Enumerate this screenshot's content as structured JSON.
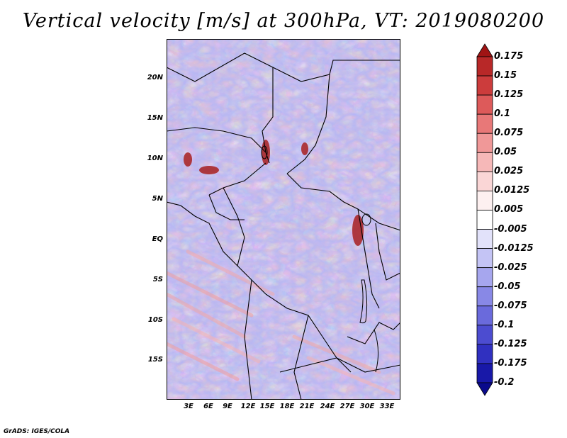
{
  "title": "Vertical velocity [m/s] at 300hPa, VT: 2019080200",
  "map": {
    "variable": "Vertical velocity",
    "level": "300hPa",
    "valid_time": "2019080200",
    "lat_ticks": [
      "20N",
      "15N",
      "10N",
      "5N",
      "EQ",
      "5S",
      "10S",
      "15S"
    ],
    "lon_ticks": [
      "3E",
      "6E",
      "9E",
      "12E",
      "15E",
      "18E",
      "21E",
      "24E",
      "27E",
      "30E",
      "33E"
    ]
  },
  "colorbar": {
    "labels": [
      "0.175",
      "0.15",
      "0.125",
      "0.1",
      "0.075",
      "0.05",
      "0.025",
      "0.0125",
      "0.005",
      "-0.005",
      "-0.0125",
      "-0.025",
      "-0.05",
      "-0.075",
      "-0.1",
      "-0.125",
      "-0.175",
      "-0.2"
    ],
    "colors": [
      "#a01414",
      "#b82828",
      "#cc3c3c",
      "#dd5a5a",
      "#e87878",
      "#f09898",
      "#f6b8b8",
      "#fad6d6",
      "#fdf0f0",
      "#ffffff",
      "#e2e2fa",
      "#c4c4f5",
      "#a6a6ee",
      "#8888e6",
      "#6a6adc",
      "#4c4cd0",
      "#3030c0",
      "#1818a8",
      "#0a0a8c"
    ]
  },
  "credit": "GrADS: IGES/COLA"
}
